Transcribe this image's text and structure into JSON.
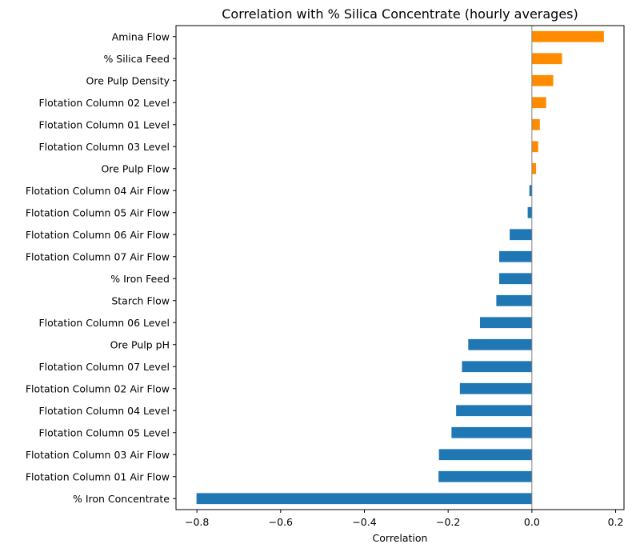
{
  "chart_data": {
    "type": "bar",
    "orientation": "horizontal",
    "title": "Correlation with % Silica Concentrate (hourly averages)",
    "xlabel": "Correlation",
    "ylabel": "",
    "xlim": [
      -0.85,
      0.22
    ],
    "xticks": [
      -0.8,
      -0.6,
      -0.4,
      -0.2,
      0.0,
      0.2
    ],
    "xtick_labels": [
      "−0.8",
      "−0.6",
      "−0.4",
      "−0.2",
      "0.0",
      "0.2"
    ],
    "grid": false,
    "legend": "none",
    "colors": {
      "positive": "#ff8c00",
      "negative": "#1f77b4",
      "zero_line": "#808080"
    },
    "categories": [
      "Amina Flow",
      "% Silica Feed",
      "Ore Pulp Density",
      "Flotation Column 02 Level",
      "Flotation Column 01 Level",
      "Flotation Column 03 Level",
      "Ore Pulp Flow",
      "Flotation Column 04 Air Flow",
      "Flotation Column 05 Air Flow",
      "Flotation Column 06 Air Flow",
      "Flotation Column 07 Air Flow",
      "% Iron Feed",
      "Starch Flow",
      "Flotation Column 06 Level",
      "Ore Pulp pH",
      "Flotation Column 07 Level",
      "Flotation Column 02 Air Flow",
      "Flotation Column 04 Level",
      "Flotation Column 05 Level",
      "Flotation Column 03 Air Flow",
      "Flotation Column 01 Air Flow",
      "% Iron Concentrate"
    ],
    "values": [
      0.172,
      0.072,
      0.051,
      0.034,
      0.019,
      0.015,
      0.01,
      -0.006,
      -0.01,
      -0.053,
      -0.078,
      -0.078,
      -0.085,
      -0.124,
      -0.152,
      -0.167,
      -0.172,
      -0.181,
      -0.192,
      -0.222,
      -0.223,
      -0.801
    ]
  }
}
